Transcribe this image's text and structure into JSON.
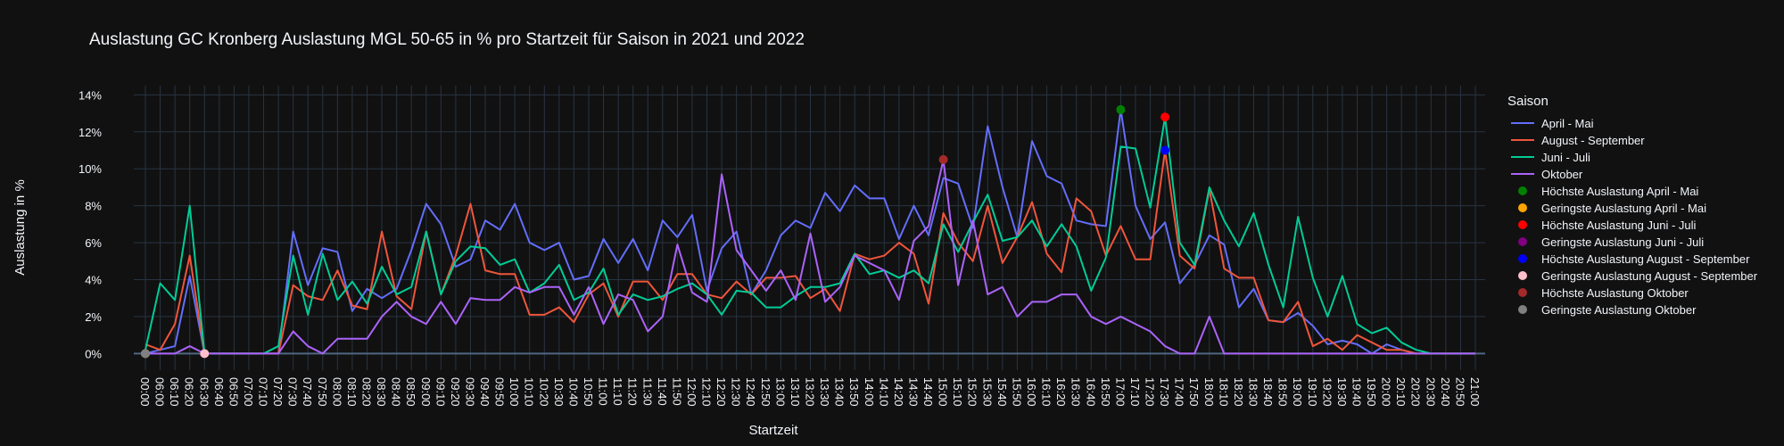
{
  "chart_data": {
    "type": "line",
    "title": "Auslastung GC Kronberg Auslastung MGL 50-65 in % pro Startzeit für Saison in 2021 und 2022",
    "x_label": "Startzeit",
    "y_label": "Auslastung in %",
    "legend_title": "Saison",
    "legend": "right",
    "grid": true,
    "categories": [
      "00:00",
      "06:00",
      "06:10",
      "06:20",
      "06:30",
      "06:40",
      "06:50",
      "07:00",
      "07:10",
      "07:20",
      "07:30",
      "07:40",
      "07:50",
      "08:00",
      "08:10",
      "08:20",
      "08:30",
      "08:40",
      "08:50",
      "09:00",
      "09:10",
      "09:20",
      "09:30",
      "09:40",
      "09:50",
      "10:00",
      "10:10",
      "10:20",
      "10:30",
      "10:40",
      "10:50",
      "11:00",
      "11:10",
      "11:20",
      "11:30",
      "11:40",
      "11:50",
      "12:00",
      "12:10",
      "12:20",
      "12:30",
      "12:40",
      "12:50",
      "13:00",
      "13:10",
      "13:20",
      "13:30",
      "13:40",
      "13:50",
      "14:00",
      "14:10",
      "14:20",
      "14:30",
      "14:40",
      "15:00",
      "15:10",
      "15:20",
      "15:30",
      "15:40",
      "15:50",
      "16:00",
      "16:10",
      "16:20",
      "16:30",
      "16:40",
      "16:50",
      "17:00",
      "17:10",
      "17:20",
      "17:30",
      "17:40",
      "17:50",
      "18:00",
      "18:10",
      "18:20",
      "18:30",
      "18:40",
      "18:50",
      "19:00",
      "19:10",
      "19:20",
      "19:30",
      "19:40",
      "19:50",
      "20:00",
      "20:10",
      "20:20",
      "20:30",
      "20:40",
      "20:50",
      "21:00"
    ],
    "ylim": [
      -0.9,
      14.5
    ],
    "yticks": [
      {
        "value": 0,
        "label": "0%"
      },
      {
        "value": 2,
        "label": "2%"
      },
      {
        "value": 4,
        "label": "4%"
      },
      {
        "value": 6,
        "label": "6%"
      },
      {
        "value": 8,
        "label": "8%"
      },
      {
        "value": 10,
        "label": "10%"
      },
      {
        "value": 12,
        "label": "12%"
      },
      {
        "value": 14,
        "label": "14%"
      }
    ],
    "series": [
      {
        "name": "April - Mai",
        "color": "#636efa",
        "mode": "lines",
        "values": [
          0,
          0.2,
          0.4,
          4.2,
          0,
          0,
          0,
          0,
          0,
          0,
          6.6,
          3.7,
          5.7,
          5.5,
          2.3,
          3.5,
          3.0,
          3.5,
          5.6,
          8.1,
          7.0,
          4.7,
          5.1,
          7.2,
          6.7,
          8.1,
          6.0,
          5.6,
          6.0,
          4.0,
          4.2,
          6.2,
          4.9,
          6.2,
          4.5,
          7.2,
          6.3,
          7.5,
          3.4,
          5.7,
          6.6,
          3.2,
          4.5,
          6.4,
          7.2,
          6.8,
          8.7,
          7.7,
          9.1,
          8.4,
          8.4,
          6.2,
          8.0,
          6.4,
          9.5,
          9.2,
          6.8,
          12.3,
          9.0,
          6.3,
          11.5,
          9.6,
          9.2,
          7.2,
          7.0,
          6.9,
          13.2,
          8.0,
          6.2,
          7.1,
          3.8,
          4.8,
          6.4,
          5.9,
          2.5,
          3.5,
          1.8,
          1.7,
          2.2,
          1.5,
          0.5,
          0.7,
          0.5,
          0,
          0.5,
          0.2,
          0,
          0,
          0,
          0,
          0
        ]
      },
      {
        "name": "August - September",
        "color": "#ef553b",
        "mode": "lines",
        "values": [
          0.5,
          0.2,
          1.6,
          5.3,
          0,
          0,
          0,
          0,
          0,
          0,
          3.7,
          3.1,
          2.9,
          4.5,
          2.6,
          2.4,
          6.6,
          3.1,
          2.4,
          6.6,
          3.2,
          5.3,
          8.1,
          4.5,
          4.3,
          4.3,
          2.1,
          2.1,
          2.5,
          1.7,
          3.2,
          3.8,
          2.0,
          3.9,
          3.9,
          2.9,
          4.3,
          4.3,
          3.2,
          3.0,
          3.9,
          3.2,
          4.1,
          4.1,
          4.2,
          3.0,
          3.5,
          2.3,
          5.4,
          5.1,
          5.3,
          6.0,
          5.4,
          2.7,
          7.6,
          6.0,
          5.0,
          8.0,
          4.9,
          6.3,
          8.2,
          5.4,
          4.4,
          8.4,
          7.7,
          5.3,
          6.9,
          5.1,
          5.1,
          11.0,
          5.3,
          4.6,
          8.9,
          4.6,
          4.1,
          4.1,
          1.8,
          1.7,
          2.8,
          0.4,
          0.8,
          0.2,
          1.0,
          0.6,
          0.2,
          0.2,
          0,
          0,
          0,
          0,
          0
        ]
      },
      {
        "name": "Juni - Juli",
        "color": "#00cc96",
        "mode": "lines",
        "values": [
          0.2,
          3.8,
          2.9,
          8.0,
          0,
          0,
          0,
          0,
          0,
          0.4,
          5.3,
          2.1,
          5.4,
          2.9,
          3.9,
          2.7,
          4.7,
          3.2,
          3.6,
          6.6,
          3.2,
          5.0,
          5.8,
          5.7,
          4.8,
          5.1,
          3.3,
          3.8,
          4.8,
          2.9,
          3.3,
          4.6,
          2.1,
          3.2,
          2.9,
          3.1,
          3.5,
          3.8,
          3.2,
          2.1,
          3.4,
          3.3,
          2.5,
          2.5,
          3.1,
          3.6,
          3.6,
          3.8,
          5.4,
          4.3,
          4.5,
          4.1,
          4.5,
          3.8,
          7.0,
          5.5,
          7.1,
          8.6,
          6.1,
          6.3,
          7.2,
          5.8,
          7.0,
          5.8,
          3.4,
          5.2,
          11.2,
          11.1,
          7.9,
          12.8,
          6.0,
          4.8,
          9.0,
          7.2,
          5.8,
          7.6,
          4.8,
          2.5,
          7.4,
          4.1,
          2.0,
          4.2,
          1.6,
          1.1,
          1.4,
          0.6,
          0.2,
          0,
          0,
          0,
          0
        ]
      },
      {
        "name": "Oktober",
        "color": "#ab63fa",
        "mode": "lines",
        "values": [
          0,
          0,
          0,
          0.4,
          0,
          0,
          0,
          0,
          0,
          0,
          1.2,
          0.4,
          0,
          0.8,
          0.8,
          0.8,
          2.0,
          2.8,
          2.0,
          1.6,
          2.8,
          1.6,
          3.0,
          2.9,
          2.9,
          3.6,
          3.3,
          3.6,
          3.6,
          2.1,
          3.6,
          1.6,
          3.2,
          2.9,
          1.2,
          2.0,
          5.9,
          3.3,
          2.8,
          9.7,
          5.6,
          4.5,
          3.4,
          4.5,
          2.9,
          6.5,
          2.8,
          3.6,
          5.3,
          4.9,
          4.5,
          2.9,
          6.1,
          6.9,
          10.5,
          3.7,
          7.2,
          3.2,
          3.6,
          2.0,
          2.8,
          2.8,
          3.2,
          3.2,
          2.0,
          1.6,
          2.0,
          1.6,
          1.2,
          0.4,
          0,
          0,
          2.0,
          0,
          0,
          0,
          0,
          0,
          0,
          0,
          0,
          0,
          0,
          0,
          0,
          0,
          0,
          0,
          0,
          0,
          0
        ]
      },
      {
        "name": "Höchste Auslastung April - Mai",
        "color": "#008000",
        "mode": "markers",
        "x": [
          "17:00"
        ],
        "values": [
          13.2
        ]
      },
      {
        "name": "Geringste Auslastung April - Mai",
        "color": "#ffa500",
        "mode": "markers",
        "x": [
          "00:00"
        ],
        "values": [
          0
        ]
      },
      {
        "name": "Höchste Auslastung Juni - Juli",
        "color": "#ff0000",
        "mode": "markers",
        "x": [
          "17:30"
        ],
        "values": [
          12.8
        ]
      },
      {
        "name": "Geringste Auslastung Juni - Juli",
        "color": "#800080",
        "mode": "markers",
        "x": [
          "06:30"
        ],
        "values": [
          0
        ]
      },
      {
        "name": "Höchste Auslastung August - September",
        "color": "#0000ff",
        "mode": "markers",
        "x": [
          "17:30"
        ],
        "values": [
          11.0
        ]
      },
      {
        "name": "Geringste Auslastung August - September",
        "color": "#ffc0cb",
        "mode": "markers",
        "x": [
          "06:30"
        ],
        "values": [
          0
        ]
      },
      {
        "name": "Höchste Auslastung Oktober",
        "color": "#a52a2a",
        "mode": "markers",
        "x": [
          "15:00"
        ],
        "values": [
          10.5
        ]
      },
      {
        "name": "Geringste Auslastung Oktober",
        "color": "#808080",
        "mode": "markers",
        "x": [
          "00:00"
        ],
        "values": [
          0
        ]
      }
    ]
  }
}
